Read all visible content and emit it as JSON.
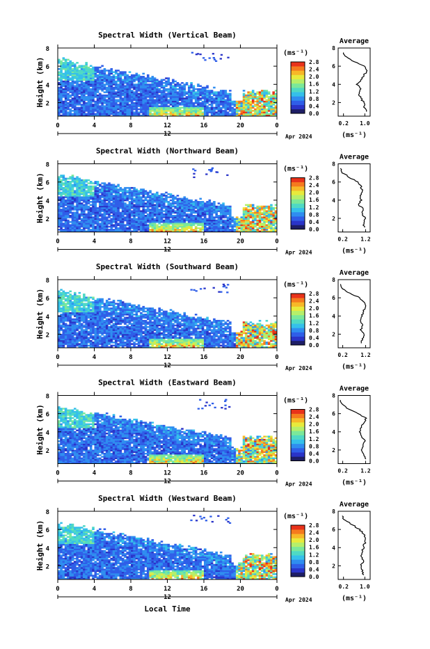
{
  "colors": {
    "colormap": [
      "#1e1e66",
      "#2a34c8",
      "#2f5ee8",
      "#2f8df0",
      "#35c0ea",
      "#4fd9c4",
      "#7be89a",
      "#b6ef6a",
      "#e8ea3c",
      "#f7b828",
      "#f57a1e",
      "#e8321a"
    ],
    "axis": "#000000",
    "background": "#ffffff",
    "profile_line": "#000000"
  },
  "common": {
    "x_ticks": [
      "0",
      "4",
      "8",
      "12",
      "16",
      "20",
      "0"
    ],
    "date_tick_label": "12",
    "date_label": "Apr 2024",
    "y_ticks": [
      "2",
      "4",
      "6",
      "8"
    ],
    "ylabel": "Height (km)",
    "colorbar_unit": "(ms⁻¹)",
    "colorbar_ticks": [
      "0.0",
      "0.4",
      "0.8",
      "1.2",
      "1.6",
      "2.0",
      "2.4",
      "2.8"
    ],
    "profile_title": "Average",
    "profile_unit": "(ms⁻¹)",
    "xlabel": "Local Time"
  },
  "chart_data": [
    {
      "type": "heatmap",
      "title": "Spectral Width (Vertical Beam)",
      "x_range_hours": [
        0,
        24
      ],
      "y_range_km": [
        0.5,
        8
      ],
      "z_range": [
        0.0,
        2.8
      ],
      "top_height_start": 6.8,
      "top_height_end": 3.2,
      "profile_ticks": [
        "0.2",
        "1.0"
      ],
      "profile_range": [
        0.0,
        1.2
      ],
      "profile_y_ticks": [
        "2",
        "4",
        "6",
        "8"
      ],
      "profile_y_range": [
        0.5,
        8
      ],
      "profile": {
        "height_km": [
          1.0,
          1.5,
          2.0,
          2.5,
          3.0,
          3.5,
          4.0,
          4.5,
          5.0,
          5.5,
          6.0,
          6.5,
          7.0,
          7.5
        ],
        "value": [
          1.05,
          0.98,
          0.95,
          0.85,
          0.78,
          0.82,
          0.7,
          0.85,
          0.95,
          1.1,
          0.95,
          0.6,
          0.3,
          0.2
        ]
      }
    },
    {
      "type": "heatmap",
      "title": "Spectral Width (Northward Beam)",
      "x_range_hours": [
        0,
        24
      ],
      "y_range_km": [
        0.5,
        8
      ],
      "z_range": [
        0.0,
        2.8
      ],
      "top_height_start": 6.8,
      "top_height_end": 3.4,
      "profile_ticks": [
        "0.2",
        "1.2"
      ],
      "profile_range": [
        0.0,
        1.4
      ],
      "profile_y_ticks": [
        "2",
        "4",
        "6",
        "8"
      ],
      "profile_y_range": [
        0.5,
        8
      ],
      "profile": {
        "height_km": [
          1.0,
          1.5,
          2.0,
          2.5,
          3.0,
          3.5,
          4.0,
          4.5,
          5.0,
          5.5,
          6.0,
          6.5,
          7.0,
          7.5
        ],
        "value": [
          1.15,
          1.1,
          1.2,
          1.05,
          1.1,
          0.9,
          1.0,
          0.95,
          1.05,
          1.0,
          0.85,
          0.5,
          0.2,
          0.1
        ]
      }
    },
    {
      "type": "heatmap",
      "title": "Spectral Width (Southward Beam)",
      "x_range_hours": [
        0,
        24
      ],
      "y_range_km": [
        0.5,
        8
      ],
      "z_range": [
        0.0,
        2.8
      ],
      "top_height_start": 6.8,
      "top_height_end": 3.3,
      "profile_ticks": [
        "0.2",
        "1.2"
      ],
      "profile_range": [
        0.0,
        1.4
      ],
      "profile_y_ticks": [
        "2",
        "4",
        "6",
        "8"
      ],
      "profile_y_range": [
        0.5,
        8
      ],
      "profile": {
        "height_km": [
          1.0,
          1.5,
          2.0,
          2.5,
          3.0,
          3.5,
          4.0,
          4.5,
          5.0,
          5.5,
          6.0,
          6.5,
          7.0,
          7.5
        ],
        "value": [
          1.0,
          1.05,
          1.15,
          1.0,
          1.1,
          0.95,
          1.05,
          1.1,
          1.2,
          1.15,
          0.95,
          0.5,
          0.2,
          0.1
        ]
      }
    },
    {
      "type": "heatmap",
      "title": "Spectral Width (Eastward Beam)",
      "x_range_hours": [
        0,
        24
      ],
      "y_range_km": [
        0.5,
        8
      ],
      "z_range": [
        0.0,
        2.8
      ],
      "top_height_start": 6.8,
      "top_height_end": 3.4,
      "profile_ticks": [
        "0.2",
        "1.2"
      ],
      "profile_range": [
        0.0,
        1.4
      ],
      "profile_y_ticks": [
        "2",
        "4",
        "6",
        "8"
      ],
      "profile_y_range": [
        0.5,
        8
      ],
      "profile": {
        "height_km": [
          1.0,
          1.5,
          2.0,
          2.5,
          3.0,
          3.5,
          4.0,
          4.5,
          5.0,
          5.5,
          6.0,
          6.5,
          7.0,
          7.5
        ],
        "value": [
          1.2,
          1.15,
          1.05,
          1.1,
          1.15,
          1.05,
          0.95,
          1.0,
          1.15,
          1.2,
          0.9,
          0.45,
          0.2,
          0.1
        ]
      }
    },
    {
      "type": "heatmap",
      "title": "Spectral Width (Westward Beam)",
      "x_range_hours": [
        0,
        24
      ],
      "y_range_km": [
        0.5,
        8
      ],
      "z_range": [
        0.0,
        2.8
      ],
      "top_height_start": 6.8,
      "top_height_end": 3.2,
      "profile_ticks": [
        "0.2",
        "1.0"
      ],
      "profile_range": [
        0.0,
        1.2
      ],
      "profile_y_ticks": [
        "2",
        "4",
        "6",
        "8"
      ],
      "profile_y_range": [
        0.5,
        8
      ],
      "profile": {
        "height_km": [
          1.0,
          1.5,
          2.0,
          2.5,
          3.0,
          3.5,
          4.0,
          4.5,
          5.0,
          5.5,
          6.0,
          6.5,
          7.0,
          7.5
        ],
        "value": [
          0.95,
          0.9,
          0.85,
          0.95,
          0.85,
          0.9,
          0.95,
          1.0,
          1.05,
          0.95,
          0.8,
          0.55,
          0.25,
          0.15
        ]
      }
    }
  ]
}
